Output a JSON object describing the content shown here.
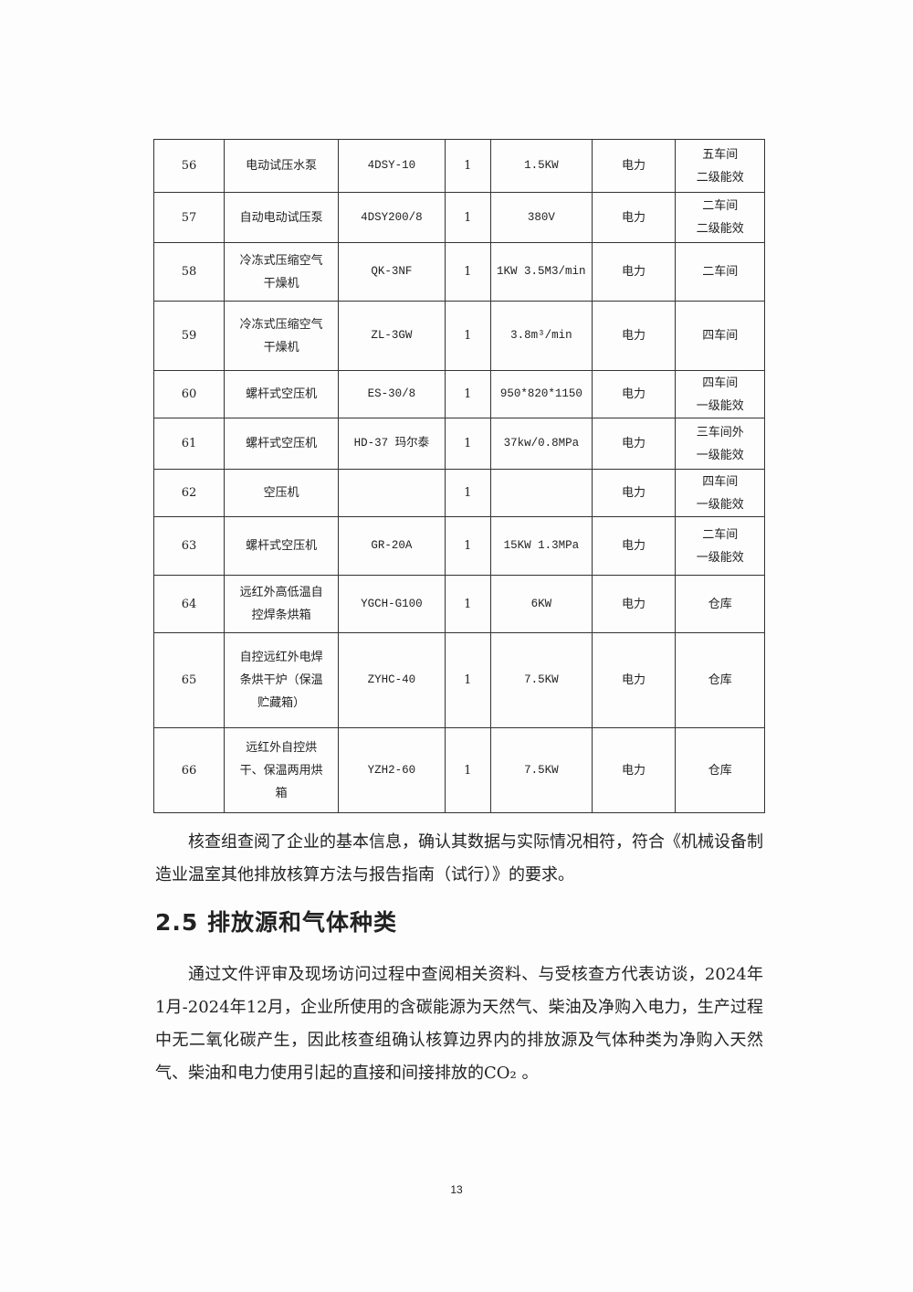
{
  "table": {
    "rows": [
      {
        "no": "56",
        "name": "电动试压水泵",
        "model": "4DSY-10",
        "qty": "1",
        "spec": "1.5KW",
        "energy": "电力",
        "location": "五车间\n二级能效",
        "h": 58
      },
      {
        "no": "57",
        "name": "自动电动试压泵",
        "model": "4DSY200/8",
        "qty": "1",
        "spec": "380V",
        "energy": "电力",
        "location": "二车间\n二级能效",
        "h": 55
      },
      {
        "no": "58",
        "name": "冷冻式压缩空气\n干燥机",
        "model": "QK-3NF",
        "qty": "1",
        "spec": "1KW 3.5M3/min",
        "energy": "电力",
        "location": "二车间",
        "h": 64
      },
      {
        "no": "59",
        "name": "冷冻式压缩空气\n干燥机",
        "model": "ZL-3GW",
        "qty": "1",
        "spec": "3.8m³/min",
        "energy": "电力",
        "location": "四车间",
        "h": 76
      },
      {
        "no": "60",
        "name": "螺杆式空压机",
        "model": "ES-30/8",
        "qty": "1",
        "spec": "950*820*1150",
        "energy": "电力",
        "location": "四车间\n一级能效",
        "h": 52
      },
      {
        "no": "61",
        "name": "螺杆式空压机",
        "model": "HD-37 玛尔泰",
        "qty": "1",
        "spec": "37kw/0.8MPa",
        "energy": "电力",
        "location": "三车间外\n一级能效",
        "h": 56
      },
      {
        "no": "62",
        "name": "空压机",
        "model": "",
        "qty": "1",
        "spec": "",
        "energy": "电力",
        "location": "四车间\n一级能效",
        "h": 52
      },
      {
        "no": "63",
        "name": "螺杆式空压机",
        "model": "GR-20A",
        "qty": "1",
        "spec": "15KW 1.3MPa",
        "energy": "电力",
        "location": "二车间\n一级能效",
        "h": 64
      },
      {
        "no": "64",
        "name": "远红外高低温自\n控焊条烘箱",
        "model": "YGCH-G100",
        "qty": "1",
        "spec": "6KW",
        "energy": "电力",
        "location": "仓库",
        "h": 63
      },
      {
        "no": "65",
        "name": "自控远红外电焊\n条烘干炉（保温\n贮藏箱）",
        "model": "ZYHC-40",
        "qty": "1",
        "spec": "7.5KW",
        "energy": "电力",
        "location": "仓库",
        "h": 104
      },
      {
        "no": "66",
        "name": "远红外自控烘\n干、保温两用烘\n箱",
        "model": "YZH2-60",
        "qty": "1",
        "spec": "7.5KW",
        "energy": "电力",
        "location": "仓库",
        "h": 93
      }
    ]
  },
  "paragraph1": "核查组查阅了企业的基本信息，确认其数据与实际情况相符，符合《机械设备制造业温室其他排放核算方法与报告指南（试行）》的要求。",
  "section_heading": "2.5 排放源和气体种类",
  "paragraph2": "通过文件评审及现场访问过程中查阅相关资料、与受核查方代表访谈，2024年1月-2024年12月，企业所使用的含碳能源为天然气、柴油及净购入电力，生产过程中无二氧化碳产生，因此核查组确认核算边界内的排放源及气体种类为净购入天然气、柴油和电力使用引起的直接和间接排放的CO₂ 。",
  "page_number": "13"
}
